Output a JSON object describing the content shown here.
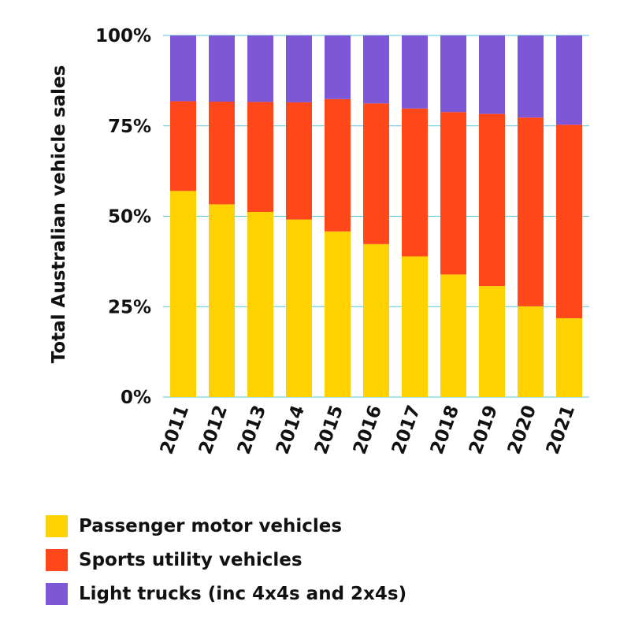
{
  "chart_data": {
    "type": "bar",
    "stacked": true,
    "ylabel": "Total Australian vehicle sales",
    "xlabel": "",
    "ylim": [
      0,
      100
    ],
    "yticks": [
      "0%",
      "25%",
      "50%",
      "75%",
      "100%"
    ],
    "categories": [
      "2011",
      "2012",
      "2013",
      "2014",
      "2015",
      "2016",
      "2017",
      "2018",
      "2019",
      "2020",
      "2021"
    ],
    "series": [
      {
        "name": "Passenger motor vehicles",
        "color": "#FFD100",
        "values": [
          57,
          53.3,
          51.2,
          49.1,
          45.8,
          42.3,
          38.9,
          33.9,
          30.7,
          25.1,
          21.8
        ]
      },
      {
        "name": "Sports utility vehicles",
        "color": "#FF4719",
        "values": [
          24.8,
          28.4,
          30.4,
          32.4,
          36.6,
          38.9,
          40.9,
          44.9,
          47.6,
          52.2,
          53.5
        ]
      },
      {
        "name": "Light trucks (inc 4x4s and 2x4s)",
        "color": "#7E57D6",
        "values": [
          18.2,
          18.3,
          18.4,
          18.5,
          17.6,
          18.8,
          20.2,
          21.2,
          21.7,
          22.7,
          24.7
        ]
      }
    ],
    "grid": true,
    "legend_position": "bottom-left"
  }
}
